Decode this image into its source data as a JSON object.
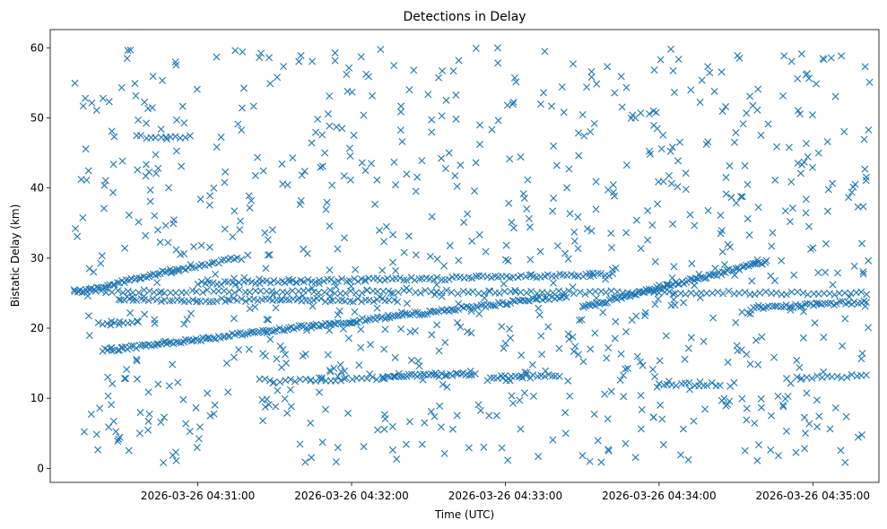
{
  "chart_data": {
    "type": "scatter",
    "title": "Detections in Delay",
    "xlabel": "Time (UTC)",
    "ylabel": "Bistatic Delay (km)",
    "marker": "x",
    "color": "#1f77b4",
    "x_units": "minutes after 2026-03-26 04:30:00 UTC",
    "xlim": [
      0.04,
      5.43
    ],
    "ylim": [
      -2.0,
      62.6
    ],
    "x_ticks": [
      {
        "value": 1,
        "label": "2026-03-26 04:31:00"
      },
      {
        "value": 2,
        "label": "2026-03-26 04:32:00"
      },
      {
        "value": 3,
        "label": "2026-03-26 04:33:00"
      },
      {
        "value": 4,
        "label": "2026-03-26 04:34:00"
      },
      {
        "value": 5,
        "label": "2026-03-26 04:35:00"
      }
    ],
    "y_ticks": [
      {
        "value": 0,
        "label": "0"
      },
      {
        "value": 10,
        "label": "10"
      },
      {
        "value": 20,
        "label": "20"
      },
      {
        "value": 30,
        "label": "30"
      },
      {
        "value": 40,
        "label": "40"
      },
      {
        "value": 50,
        "label": "50"
      },
      {
        "value": 60,
        "label": "60"
      }
    ],
    "tracks": [
      {
        "name": "rising-track-low",
        "x_start": 0.38,
        "x_end": 3.4,
        "y_start": 16.8,
        "y_end": 24.6,
        "count": 190
      },
      {
        "name": "band-25",
        "x_start": 0.2,
        "x_end": 5.35,
        "y_start": 25.3,
        "y_end": 25.0,
        "count": 150
      },
      {
        "name": "band-27",
        "x_start": 1.0,
        "x_end": 3.7,
        "y_start": 26.4,
        "y_end": 27.6,
        "count": 110
      },
      {
        "name": "band-24",
        "x_start": 0.5,
        "x_end": 2.3,
        "y_start": 24.0,
        "y_end": 24.0,
        "count": 70
      },
      {
        "name": "rising-track-high",
        "x_start": 0.2,
        "x_end": 0.88,
        "y_start": 25.0,
        "y_end": 28.5,
        "count": 45
      },
      {
        "name": "rising-track-early",
        "x_start": 0.88,
        "x_end": 1.28,
        "y_start": 28.3,
        "y_end": 30.0,
        "count": 20
      },
      {
        "name": "rising-track-late",
        "x_start": 3.5,
        "x_end": 4.7,
        "y_start": 23.0,
        "y_end": 29.5,
        "count": 90
      },
      {
        "name": "band-23-late",
        "x_start": 4.6,
        "x_end": 5.35,
        "y_start": 22.8,
        "y_end": 23.8,
        "count": 40
      },
      {
        "name": "band-13-mid",
        "x_start": 2.2,
        "x_end": 2.8,
        "y_start": 13.0,
        "y_end": 13.5,
        "count": 35
      },
      {
        "name": "band-12-mid",
        "x_start": 1.4,
        "x_end": 2.2,
        "y_start": 12.5,
        "y_end": 12.8,
        "count": 25
      },
      {
        "name": "band-13-late",
        "x_start": 2.9,
        "x_end": 3.35,
        "y_start": 13.0,
        "y_end": 13.2,
        "count": 20
      },
      {
        "name": "band-12-far",
        "x_start": 4.0,
        "x_end": 4.4,
        "y_start": 12.0,
        "y_end": 12.0,
        "count": 15
      },
      {
        "name": "band-13-end",
        "x_start": 4.9,
        "x_end": 5.35,
        "y_start": 13.0,
        "y_end": 13.2,
        "count": 15
      },
      {
        "name": "band-47",
        "x_start": 0.6,
        "x_end": 0.95,
        "y_start": 47.3,
        "y_end": 47.3,
        "count": 12
      },
      {
        "name": "band-21-early",
        "x_start": 0.35,
        "x_end": 0.6,
        "y_start": 20.8,
        "y_end": 20.8,
        "count": 10
      }
    ],
    "noise": {
      "count": 900,
      "x_range": [
        0.2,
        5.37
      ],
      "y_range": [
        0.8,
        60.0
      ],
      "seed": 7
    }
  }
}
